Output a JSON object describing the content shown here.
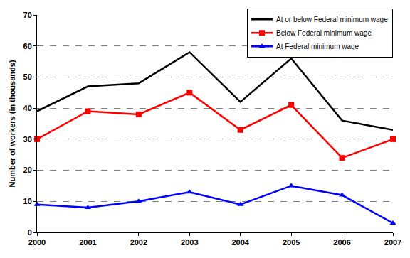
{
  "chart_data": {
    "type": "line",
    "x": [
      2000,
      2001,
      2002,
      2003,
      2004,
      2005,
      2006,
      2007
    ],
    "xlim": [
      2000,
      2007
    ],
    "xticks": [
      2000,
      2001,
      2002,
      2003,
      2004,
      2005,
      2006,
      2007
    ],
    "ylim": [
      0,
      70
    ],
    "yticks": [
      0,
      10,
      20,
      30,
      40,
      50,
      60,
      70
    ],
    "y_label": "Number of workers (in thousands)",
    "grid": true,
    "legend": "top-right",
    "series": [
      {
        "name": "At or below Federal minimum wage",
        "color": "#000000",
        "marker": "none",
        "line_style": "solid",
        "values": [
          39,
          47,
          48,
          58,
          42,
          56,
          36,
          33
        ]
      },
      {
        "name": "Below Federal minimum wage",
        "color": "#ff0000",
        "marker": "square",
        "line_style": "solid",
        "values": [
          30,
          39,
          38,
          45,
          33,
          41,
          24,
          30
        ]
      },
      {
        "name": "At Federal minimum wage",
        "color": "#0000ff",
        "marker": "triangle-up",
        "line_style": "solid",
        "values": [
          9,
          8,
          10,
          13,
          9,
          15,
          12,
          3
        ]
      }
    ]
  }
}
